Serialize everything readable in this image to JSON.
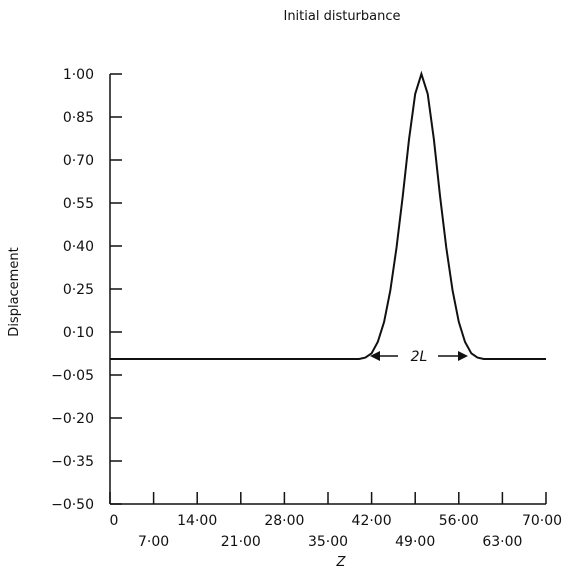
{
  "chart_data": {
    "type": "line",
    "title": "Initial disturbance",
    "xlabel": "Z",
    "ylabel": "Displacement",
    "xlim": [
      0,
      70
    ],
    "ylim": [
      -0.5,
      1.0
    ],
    "x_ticks_upper": [
      "0",
      "14·00",
      "28·00",
      "42·00",
      "56·00",
      "70·00"
    ],
    "x_ticks_lower": [
      "7·00",
      "21·00",
      "35·00",
      "49·00",
      "63·00"
    ],
    "y_ticks": [
      "1·00",
      "0·85",
      "0·70",
      "0·55",
      "0·40",
      "0·25",
      "0·10",
      "−0·05",
      "−0·20",
      "−0·35",
      "−0·50"
    ],
    "annotation": "2L",
    "grid": false,
    "series": [
      {
        "baseline": 0.0,
        "x": [
          0,
          5,
          10,
          15,
          20,
          25,
          30,
          35,
          38,
          40,
          41,
          42,
          43,
          44,
          45,
          46,
          47,
          48,
          49,
          50,
          51,
          52,
          53,
          54,
          55,
          56,
          57,
          58,
          59,
          60,
          62,
          65,
          70
        ],
        "y": [
          0.0,
          0.0,
          0.0,
          0.0,
          0.0,
          0.0,
          0.0,
          0.0,
          0.0,
          0.0,
          0.005,
          0.02,
          0.06,
          0.13,
          0.24,
          0.39,
          0.57,
          0.77,
          0.93,
          1.0,
          0.93,
          0.77,
          0.57,
          0.39,
          0.24,
          0.13,
          0.06,
          0.02,
          0.005,
          0.0,
          0.0,
          0.0,
          0.0
        ]
      }
    ]
  }
}
